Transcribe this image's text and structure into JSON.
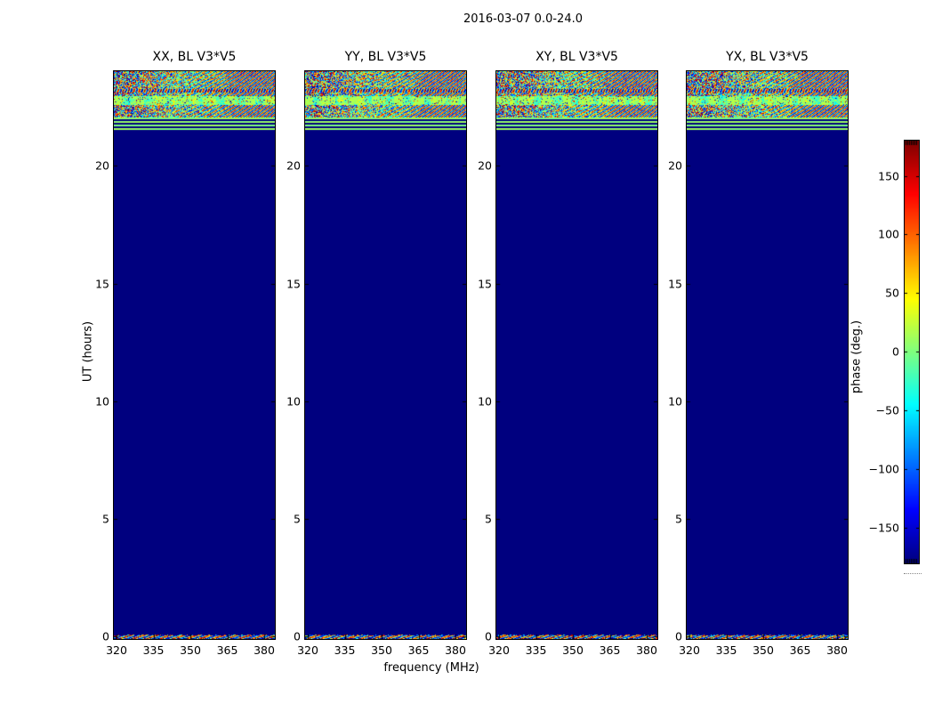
{
  "figure": {
    "suptitle": "2016-03-07 0.0-24.0",
    "xlabel": "frequency (MHz)",
    "ylabel": "UT (hours)",
    "panels": [
      {
        "title": "XX, BL V3*V5"
      },
      {
        "title": "YY, BL V3*V5"
      },
      {
        "title": "XY, BL V3*V5"
      },
      {
        "title": "YX, BL V3*V5"
      }
    ],
    "x_tick_labels": [
      "320",
      "335",
      "350",
      "365",
      "380"
    ],
    "y_tick_labels": [
      "20",
      "15",
      "10",
      "5",
      "0"
    ],
    "colorbar": {
      "label": "phase (deg.)",
      "tick_labels": [
        "150",
        "100",
        "50",
        "0",
        "−50",
        "−100",
        "−150"
      ]
    },
    "colors": {
      "background": "#ffffff",
      "field_navy": "#000080",
      "stripe_green": "#96ff69",
      "frame": "#000000"
    }
  },
  "chart_data": {
    "type": "heatmap",
    "title": "2016-03-07 0.0-24.0",
    "subplots": [
      "XX, BL V3*V5",
      "YY, BL V3*V5",
      "XY, BL V3*V5",
      "YX, BL V3*V5"
    ],
    "xlabel": "frequency (MHz)",
    "ylabel": "UT (hours)",
    "x_ticks": [
      320,
      335,
      350,
      365,
      380
    ],
    "x_range_mhz": [
      319,
      384
    ],
    "y_ticks": [
      0,
      5,
      10,
      15,
      20
    ],
    "y_range_hours": [
      0,
      24
    ],
    "colormap": "jet",
    "colorbar_label": "phase (deg.)",
    "colorbar_ticks": [
      150,
      100,
      50,
      0,
      -50,
      -100,
      -150
    ],
    "colorbar_range_deg": [
      -180,
      180
    ],
    "regions_per_panel": [
      {
        "ut_hours": [
          22.1,
          24.0
        ],
        "value": "random phase noise with diagonal interference fringes spanning full -180..180 deg range; fringes tighten toward higher frequency; coherent green (phase~0) band near UT 22.6"
      },
      {
        "ut_hours": [
          21.6,
          22.0
        ],
        "value": "alternating horizontal stripes: phase ~0 deg (pale green) and -180 deg (navy)"
      },
      {
        "ut_hours": [
          0.2,
          21.5
        ],
        "value": "uniform phase -180 deg (solid navy blue)"
      },
      {
        "ut_hours": [
          0.0,
          0.2
        ],
        "value": "thin strip of random phase noise"
      }
    ],
    "legend_position": "right colorbar",
    "grid": false
  }
}
